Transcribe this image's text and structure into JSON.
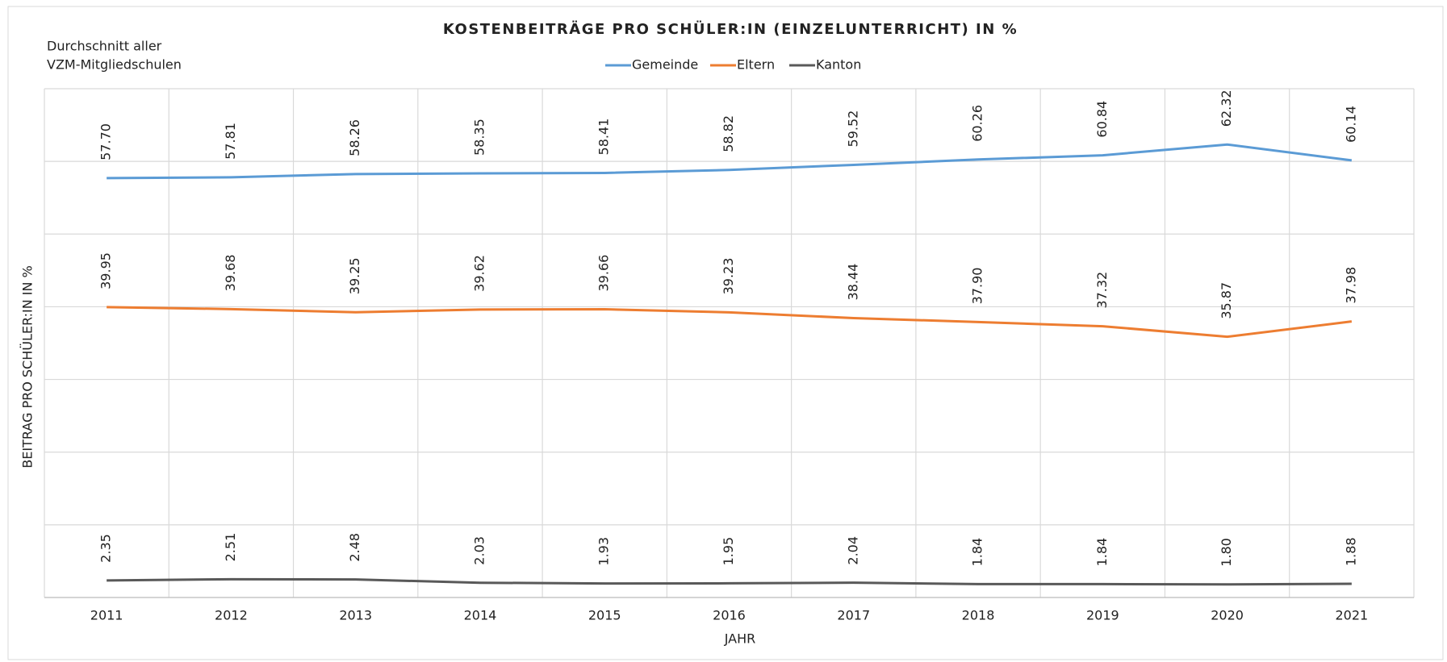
{
  "chart_data": {
    "type": "line",
    "title": "KOSTENBEITRÄGE  PRO  SCHÜLER:IN  (EINZELUNTERRICHT)  IN %",
    "note": [
      "Durchschnitt aller",
      "VZM-Mitgliedschulen"
    ],
    "x_label": "JAHR",
    "y_label": "BEITRAG PRO SCHÜLER:IN  IN %",
    "categories": [
      "2011",
      "2012",
      "2013",
      "2014",
      "2015",
      "2016",
      "2017",
      "2018",
      "2019",
      "2020",
      "2021"
    ],
    "series": [
      {
        "name": "Gemeinde",
        "color": "#5b9bd5",
        "values": [
          57.7,
          57.81,
          58.26,
          58.35,
          58.41,
          58.82,
          59.52,
          60.26,
          60.84,
          62.32,
          60.14
        ],
        "value_labels": [
          "57.70",
          "57.81",
          "58.26",
          "58.35",
          "58.41",
          "58.82",
          "59.52",
          "60.26",
          "60.84",
          "62.32",
          "60.14"
        ]
      },
      {
        "name": "Eltern",
        "color": "#ed7d31",
        "values": [
          39.95,
          39.68,
          39.25,
          39.62,
          39.66,
          39.23,
          38.44,
          37.9,
          37.32,
          35.87,
          37.98
        ],
        "value_labels": [
          "39.95",
          "39.68",
          "39.25",
          "39.62",
          "39.66",
          "39.23",
          "38.44",
          "37.90",
          "37.32",
          "35.87",
          "37.98"
        ]
      },
      {
        "name": "Kanton",
        "color": "#595959",
        "values": [
          2.35,
          2.51,
          2.48,
          2.03,
          1.93,
          1.95,
          2.04,
          1.84,
          1.84,
          1.8,
          1.88
        ],
        "value_labels": [
          "2.35",
          "2.51",
          "2.48",
          "2.03",
          "1.93",
          "1.95",
          "2.04",
          "1.84",
          "1.84",
          "1.80",
          "1.88"
        ]
      }
    ],
    "ylim": [
      0,
      70
    ],
    "yticks": [
      0,
      10,
      20,
      30,
      40,
      50,
      60,
      70
    ],
    "grid": true,
    "legend": "top"
  }
}
